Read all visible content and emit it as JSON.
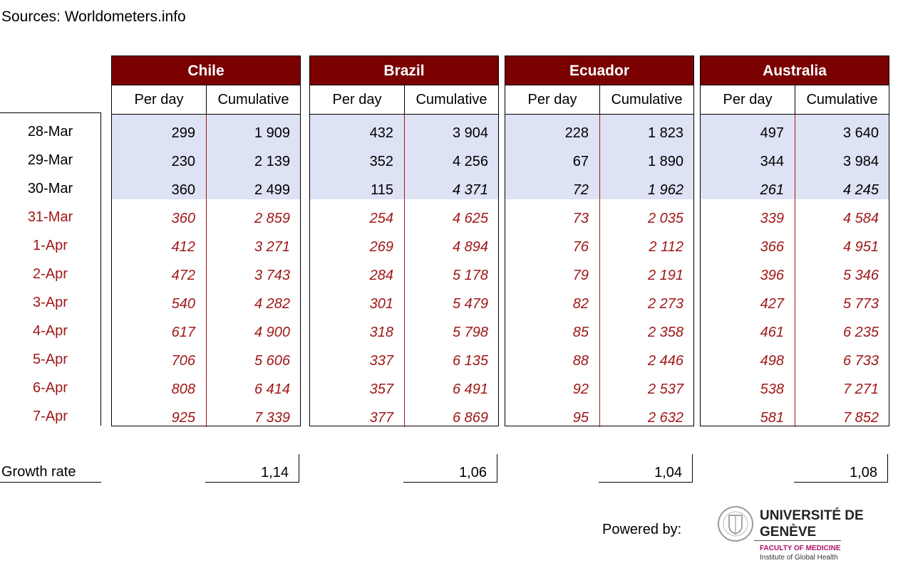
{
  "source": "Sources: Worldometers.info",
  "dates": [
    "28-Mar",
    "29-Mar",
    "30-Mar",
    "31-Mar",
    "1-Apr",
    "2-Apr",
    "3-Apr",
    "4-Apr",
    "5-Apr",
    "6-Apr",
    "7-Apr"
  ],
  "columns": {
    "per_day": "Per day",
    "cumulative": "Cumulative"
  },
  "countries": [
    {
      "name": "Chile",
      "per_day": [
        "299",
        "230",
        "360",
        "360",
        "412",
        "472",
        "540",
        "617",
        "706",
        "808",
        "925"
      ],
      "cumulative": [
        "1 909",
        "2 139",
        "2 499",
        "2 859",
        "3 271",
        "3 743",
        "4 282",
        "4 900",
        "5 606",
        "6 414",
        "7 339"
      ],
      "growth": "1,14"
    },
    {
      "name": "Brazil",
      "per_day": [
        "432",
        "352",
        "115",
        "254",
        "269",
        "284",
        "301",
        "318",
        "337",
        "357",
        "377"
      ],
      "cumulative": [
        "3 904",
        "4 256",
        "4 371",
        "4 625",
        "4 894",
        "5 178",
        "5 479",
        "5 798",
        "6 135",
        "6 491",
        "6 869"
      ],
      "growth": "1,06"
    },
    {
      "name": "Ecuador",
      "per_day": [
        "228",
        "67",
        "72",
        "73",
        "76",
        "79",
        "82",
        "85",
        "88",
        "92",
        "95"
      ],
      "cumulative": [
        "1 823",
        "1 890",
        "1 962",
        "2 035",
        "2 112",
        "2 191",
        "2 273",
        "2 358",
        "2 446",
        "2 537",
        "2 632"
      ],
      "growth": "1,04"
    },
    {
      "name": "Australia",
      "per_day": [
        "497",
        "344",
        "261",
        "339",
        "366",
        "396",
        "427",
        "461",
        "498",
        "538",
        "581"
      ],
      "cumulative": [
        "3 640",
        "3 984",
        "4 245",
        "4 584",
        "4 951",
        "5 346",
        "5 773",
        "6 235",
        "6 733",
        "7 271",
        "7 852"
      ],
      "growth": "1,08"
    }
  ],
  "growth_label": "Growth rate",
  "powered_by": "Powered by:",
  "logo": {
    "university": "UNIVERSITÉ DE GENÈVE",
    "faculty": "FACULTY OF MEDICINE",
    "institute": "Institute of Global Health"
  },
  "colors": {
    "header_bg": "#7b0000",
    "observed_bg": "#dde2f4",
    "projection_text": "#a01818"
  }
}
